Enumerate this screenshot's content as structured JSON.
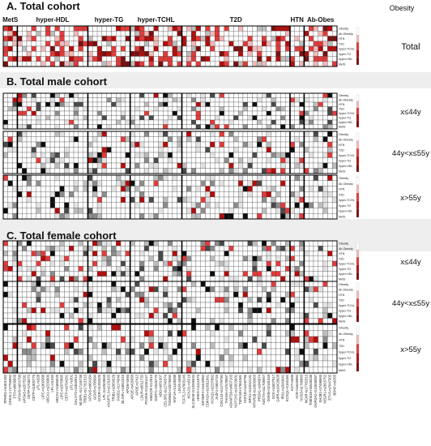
{
  "sections": {
    "a": "A. Total cohort",
    "b": "B. Total male cohort",
    "c": "C. Total female cohort"
  },
  "legend_title": "Obesity",
  "column_groups": [
    {
      "label": "MetS",
      "n": 3
    },
    {
      "label": "hyper-HDL",
      "n": 15
    },
    {
      "label": "hyper-TG",
      "n": 9
    },
    {
      "label": "hyper-TCHL",
      "n": 11
    },
    {
      "label": "T2D",
      "n": 23
    },
    {
      "label": "HTN",
      "n": 3
    },
    {
      "label": "Ab-Obes",
      "n": 7
    }
  ],
  "row_labels": [
    "Obesity",
    "Ab-Obesity",
    "HTN",
    "T2D",
    "hyper-TCHL",
    "hyper-TG",
    "hyper-HDL",
    "MetS"
  ],
  "panels": [
    {
      "id": "total",
      "label": "Total"
    },
    {
      "id": "male_le44",
      "label": "x≤44y"
    },
    {
      "id": "male_44_55",
      "label": "44y<x≤55y"
    },
    {
      "id": "male_gt55",
      "label": "x>55y"
    },
    {
      "id": "female_le44",
      "label": "x≤44y"
    },
    {
      "id": "female_44_55",
      "label": "44y<x≤55y"
    },
    {
      "id": "female_gt55",
      "label": "x>55y"
    }
  ],
  "snp_labels": [
    "PPARG-rs1801282",
    "CDKAL1-rs7756992",
    "FTO-rs9939609",
    "APOA5-rs662799",
    "APOA5-rs2075291",
    "CETP-rs708272",
    "CETP-rs1800775",
    "LPL-rs328",
    "LIPC-rs1800588",
    "ABCA1-rs2230806",
    "LPL-rs1326",
    "ABCA1-rs1883025",
    "LIPC-rs2070895",
    "CETP-rs3764261",
    "LPL-rs301",
    "GALNT2-rs4846914",
    "MLXIPL-rs17145738",
    "TRIB1-rs17321515",
    "APOA5-rs964184",
    "GCKR-rs780094",
    "GCKR-rs1260326",
    "LPL-rs10503669",
    "ANGPTL3-rs2131925",
    "TRIB1-rs2954029",
    "FADS1-rs174546",
    "MLXIPL-rs3812316",
    "APOB-rs693",
    "APOE-rs429358",
    "APOE-rs7412",
    "LDLR-rs6511720",
    "PCSK9-rs11591147",
    "HMGCR-rs12916",
    "SORT1-rs646776",
    "ABO-rs651007",
    "CELSR2-rs12740374",
    "TOMM40-rs2075650",
    "HNF1A-rs1169288",
    "LDLR-rs688",
    "TCF7L2-rs7903146",
    "KCNJ11-rs5219",
    "SLC30A8-rs13266634",
    "HHEX-rs1111875",
    "IGF2BP2-rs4402960",
    "CDKN2A-rs10811661",
    "KCNQ1-rs2237892",
    "JAZF1-rs864745",
    "CDC123-rs12779790",
    "THADA-rs7578597",
    "ADAMTS9-rs4607103",
    "NOTCH2-rs10923931",
    "TSPAN8-rs7961581",
    "HNF1B-rs4430796",
    "WFS1-rs10010131",
    "MTNR1B-rs10830963",
    "PROX1-rs340874",
    "ADCY5-rs11708067",
    "DGKB-rs2191349",
    "GCK-rs4607517",
    "GIPR-rs10423928",
    "IRS1-rs2943641",
    "KCNQ1-rs163184",
    "AGT-rs699",
    "ACE-rs4646994",
    "NOS3-rs1799983",
    "MC4R-rs17782313",
    "TMEM18-rs6548238",
    "GNPDA2-rs10938397",
    "SH2B1-rs7498665",
    "NEGR1-rs2815752",
    "ETV5-rs7647305",
    "BDNF-rs6265"
  ],
  "colors": {
    "null": "#ffffff",
    "pale_gray": "#e2e2e2",
    "light_gray": "#bdbdbd",
    "mid_gray": "#8c8c8c",
    "dark_gray": "#4a4a4a",
    "black": "#0d0d0d",
    "pale_red": "#f0b9b9",
    "red": "#e03b3b",
    "dark_red": "#b10e0e",
    "maroon": "#7a1010"
  }
}
